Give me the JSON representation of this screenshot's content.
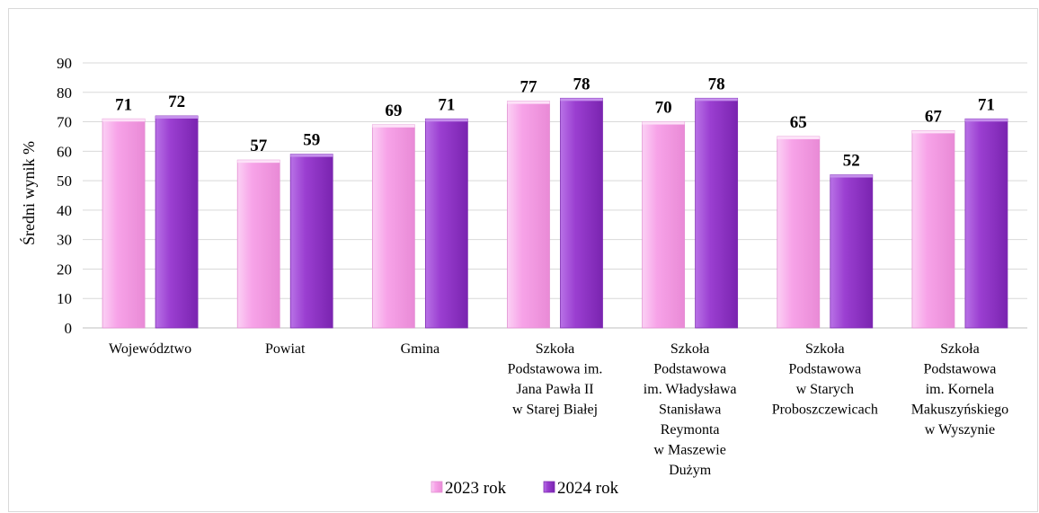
{
  "chart_data": {
    "type": "bar",
    "title": "",
    "xlabel": "",
    "ylabel": "Średni wynik %",
    "ylim": [
      0,
      90
    ],
    "yticks": [
      0,
      10,
      20,
      30,
      40,
      50,
      60,
      70,
      80,
      90
    ],
    "grid": true,
    "legend_position": "bottom",
    "categories": [
      [
        "Województwo"
      ],
      [
        "Powiat"
      ],
      [
        "Gmina"
      ],
      [
        "Szkoła",
        "Podstawowa im.",
        "Jana Pawła II",
        "w Starej Białej"
      ],
      [
        "Szkoła",
        "Podstawowa",
        "im. Władysława",
        "Stanisława",
        "Reymonta",
        "w Maszewie",
        "Dużym"
      ],
      [
        "Szkoła",
        "Podstawowa",
        "w Starych",
        "Proboszczewicach"
      ],
      [
        "Szkoła",
        "Podstawowa",
        "im. Kornela",
        "Makuszyńskiego",
        "w Wyszynie"
      ]
    ],
    "series": [
      {
        "name": "2023 rok",
        "color": "#f7a3e8",
        "values": [
          71,
          57,
          69,
          77,
          70,
          65,
          67
        ]
      },
      {
        "name": "2024 rok",
        "color": "#9b3fd1",
        "values": [
          72,
          59,
          71,
          78,
          78,
          52,
          71
        ]
      }
    ]
  }
}
